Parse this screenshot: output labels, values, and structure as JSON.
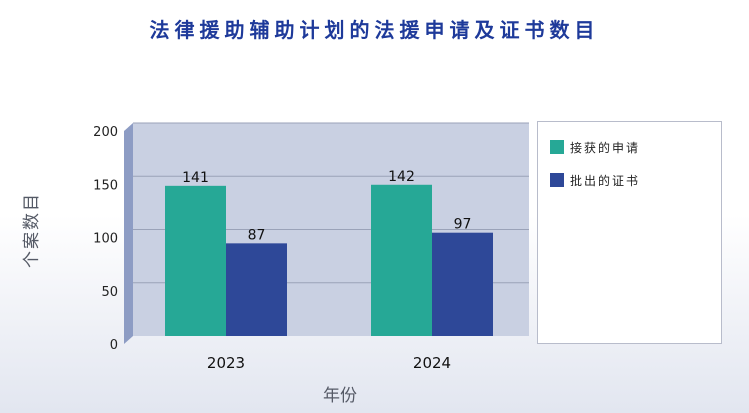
{
  "title": "法律援助辅助计划的法援申请及证书数目",
  "chart_data": {
    "type": "bar",
    "categories": [
      "2023",
      "2024"
    ],
    "series": [
      {
        "name": "接获的申请",
        "values": [
          141,
          142
        ],
        "color": "#26a896"
      },
      {
        "name": "批出的证书",
        "values": [
          87,
          97
        ],
        "color": "#2e4898"
      }
    ],
    "xlabel": "年份",
    "ylabel": "个案数目",
    "ylim": [
      0,
      200
    ],
    "yticks": [
      0,
      50,
      100,
      150,
      200
    ],
    "grid": true,
    "legend_position": "right"
  }
}
